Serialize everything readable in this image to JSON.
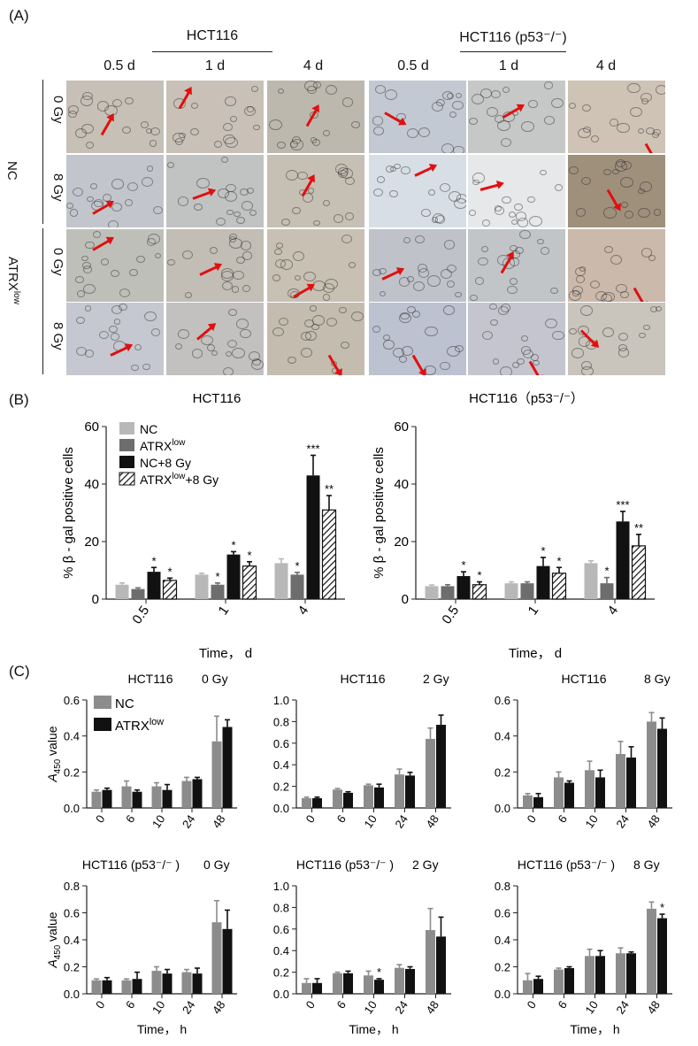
{
  "panel_labels": {
    "a": "(A)",
    "b": "(B)",
    "c": "(C)"
  },
  "panel_a": {
    "groups": [
      {
        "title": "HCT116",
        "times": [
          "0.5 d",
          "1 d",
          "4 d"
        ]
      },
      {
        "title": "HCT116 (p53⁻/⁻)",
        "times": [
          "0.5 d",
          "1 d",
          "4 d"
        ]
      }
    ],
    "row_groups": [
      "NC",
      "ATRX"
    ],
    "row_group_sub": "low",
    "doses": [
      "0 Gy",
      "8 Gy",
      "0 Gy",
      "8 Gy"
    ],
    "arrow_color": "#e01010",
    "tiles": [
      [
        "#c7c0b6",
        "#c9c1b8",
        "#bdb8ad",
        "#c3c9d2",
        "#c6c8c7",
        "#cfc3b6"
      ],
      [
        "#c2c6cc",
        "#c0c3c2",
        "#c6bfb3",
        "#d7dee6",
        "#e6e8ea",
        "#9f907c"
      ],
      [
        "#bfbfba",
        "#c2bdb5",
        "#c8c0b3",
        "#bfc3c9",
        "#c2c5c7",
        "#cbb9ab"
      ],
      [
        "#c5c8d0",
        "#c2c1bf",
        "#c4bcaf",
        "#bcc2cf",
        "#c5c5cf",
        "#c9c4bc"
      ]
    ]
  },
  "chart_data": [
    {
      "id": "B-left",
      "type": "bar",
      "title": "HCT116",
      "xlabel": "Time， d",
      "ylabel": "% β - gal positive cells",
      "ylim": [
        0,
        60
      ],
      "yticks": [
        0,
        20,
        40,
        60
      ],
      "categories": [
        "0.5",
        "1",
        "4"
      ],
      "series": [
        {
          "name": "NC",
          "color": "#b8b8b8",
          "pattern": "solid",
          "values": [
            5,
            8.5,
            12.5
          ],
          "errors": [
            0.6,
            0.5,
            1.5
          ],
          "sig": [
            "",
            "",
            ""
          ]
        },
        {
          "name": "ATRXlow",
          "color": "#6d6d6d",
          "pattern": "solid",
          "values": [
            3.5,
            5,
            8.5
          ],
          "errors": [
            0.4,
            0.6,
            0.8
          ],
          "sig": [
            "",
            "*",
            "*"
          ]
        },
        {
          "name": "NC+8 Gy",
          "color": "#111111",
          "pattern": "solid",
          "values": [
            9.5,
            15.5,
            43
          ],
          "errors": [
            1.5,
            1.0,
            7.0
          ],
          "sig": [
            "*",
            "*",
            "***"
          ]
        },
        {
          "name": "ATRXlow+8 Gy",
          "color": "#111111",
          "pattern": "hatch",
          "values": [
            6.5,
            11.5,
            31
          ],
          "errors": [
            0.8,
            1.5,
            5.0
          ],
          "sig": [
            "*",
            "*",
            "**"
          ]
        }
      ]
    },
    {
      "id": "B-right",
      "type": "bar",
      "title": "HCT116（p53⁻/⁻）",
      "xlabel": "Time， d",
      "ylabel": "% β - gal positive cells",
      "ylim": [
        0,
        60
      ],
      "yticks": [
        0,
        20,
        40,
        60
      ],
      "categories": [
        "0.5",
        "1",
        "4"
      ],
      "series": [
        {
          "name": "NC",
          "color": "#b8b8b8",
          "pattern": "solid",
          "values": [
            4.5,
            5.5,
            12.5
          ],
          "errors": [
            0.4,
            0.5,
            0.8
          ],
          "sig": [
            "",
            "",
            ""
          ]
        },
        {
          "name": "ATRXlow",
          "color": "#6d6d6d",
          "pattern": "solid",
          "values": [
            4.5,
            5.5,
            5.5
          ],
          "errors": [
            0.5,
            0.5,
            2.0
          ],
          "sig": [
            "",
            "",
            "*"
          ]
        },
        {
          "name": "NC+8 Gy",
          "color": "#111111",
          "pattern": "solid",
          "values": [
            8,
            11.5,
            27
          ],
          "errors": [
            1.5,
            3.0,
            3.5
          ],
          "sig": [
            "*",
            "*",
            "***"
          ]
        },
        {
          "name": "ATRXlow+8 Gy",
          "color": "#111111",
          "pattern": "hatch",
          "values": [
            5,
            9,
            18.5
          ],
          "errors": [
            1.0,
            2.0,
            4.0
          ],
          "sig": [
            "*",
            "*",
            "**"
          ]
        }
      ]
    },
    {
      "id": "C-1",
      "type": "bar",
      "title": "HCT116",
      "dose": "0 Gy",
      "xlabel": "",
      "ylabel": "A450 value",
      "ylim": [
        0,
        0.6
      ],
      "yticks": [
        0.0,
        0.2,
        0.4,
        0.6
      ],
      "categories": [
        "0",
        "6",
        "10",
        "24",
        "48"
      ],
      "series": [
        {
          "name": "NC",
          "color": "#8c8c8c",
          "values": [
            0.09,
            0.12,
            0.12,
            0.15,
            0.37
          ],
          "errors": [
            0.01,
            0.03,
            0.02,
            0.02,
            0.14
          ],
          "sig": [
            "",
            "",
            "",
            "",
            ""
          ]
        },
        {
          "name": "ATRXlow",
          "color": "#111111",
          "values": [
            0.1,
            0.09,
            0.1,
            0.16,
            0.45
          ],
          "errors": [
            0.01,
            0.01,
            0.03,
            0.01,
            0.04
          ],
          "sig": [
            "",
            "",
            "",
            "",
            ""
          ]
        }
      ]
    },
    {
      "id": "C-2",
      "type": "bar",
      "title": "HCT116",
      "dose": "2 Gy",
      "xlabel": "",
      "ylabel": "",
      "ylim": [
        0,
        1.0
      ],
      "yticks": [
        0.0,
        0.2,
        0.4,
        0.6,
        0.8,
        1.0
      ],
      "categories": [
        "0",
        "6",
        "10",
        "24",
        "48"
      ],
      "series": [
        {
          "name": "NC",
          "color": "#8c8c8c",
          "values": [
            0.09,
            0.17,
            0.21,
            0.31,
            0.64
          ],
          "errors": [
            0.01,
            0.01,
            0.01,
            0.05,
            0.1
          ],
          "sig": [
            "",
            "",
            "",
            "",
            ""
          ]
        },
        {
          "name": "ATRXlow",
          "color": "#111111",
          "values": [
            0.09,
            0.14,
            0.19,
            0.3,
            0.77
          ],
          "errors": [
            0.01,
            0.01,
            0.03,
            0.03,
            0.09
          ],
          "sig": [
            "",
            "",
            "",
            "",
            ""
          ]
        }
      ]
    },
    {
      "id": "C-3",
      "type": "bar",
      "title": "HCT116",
      "dose": "8 Gy",
      "xlabel": "",
      "ylabel": "",
      "ylim": [
        0,
        0.6
      ],
      "yticks": [
        0.0,
        0.2,
        0.4,
        0.6
      ],
      "categories": [
        "0",
        "6",
        "10",
        "24",
        "48"
      ],
      "series": [
        {
          "name": "NC",
          "color": "#8c8c8c",
          "values": [
            0.07,
            0.17,
            0.21,
            0.3,
            0.48
          ],
          "errors": [
            0.01,
            0.03,
            0.05,
            0.07,
            0.05
          ],
          "sig": [
            "",
            "",
            "",
            "",
            ""
          ]
        },
        {
          "name": "ATRXlow",
          "color": "#111111",
          "values": [
            0.06,
            0.14,
            0.17,
            0.28,
            0.44
          ],
          "errors": [
            0.02,
            0.01,
            0.04,
            0.06,
            0.06
          ],
          "sig": [
            "",
            "",
            "",
            "",
            ""
          ]
        }
      ]
    },
    {
      "id": "C-4",
      "type": "bar",
      "title": "HCT116 (p53⁻/⁻ )",
      "dose": "0 Gy",
      "xlabel": "Time， h",
      "ylabel": "A450 value",
      "ylim": [
        0,
        0.8
      ],
      "yticks": [
        0.0,
        0.2,
        0.4,
        0.6,
        0.8
      ],
      "categories": [
        "0",
        "6",
        "10",
        "24",
        "48"
      ],
      "series": [
        {
          "name": "NC",
          "color": "#8c8c8c",
          "values": [
            0.1,
            0.1,
            0.17,
            0.16,
            0.53
          ],
          "errors": [
            0.01,
            0.01,
            0.03,
            0.02,
            0.16
          ],
          "sig": [
            "",
            "",
            "",
            "",
            ""
          ]
        },
        {
          "name": "ATRXlow",
          "color": "#111111",
          "values": [
            0.1,
            0.11,
            0.15,
            0.15,
            0.48
          ],
          "errors": [
            0.02,
            0.05,
            0.03,
            0.04,
            0.14
          ],
          "sig": [
            "",
            "",
            "",
            "",
            ""
          ]
        }
      ]
    },
    {
      "id": "C-5",
      "type": "bar",
      "title": "HCT116 (p53⁻/⁻ )",
      "dose": "2 Gy",
      "xlabel": "Time， h",
      "ylabel": "",
      "ylim": [
        0,
        1.0
      ],
      "yticks": [
        0.0,
        0.2,
        0.4,
        0.6,
        0.8,
        1.0
      ],
      "categories": [
        "0",
        "6",
        "10",
        "24",
        "48"
      ],
      "series": [
        {
          "name": "NC",
          "color": "#8c8c8c",
          "values": [
            0.1,
            0.19,
            0.17,
            0.24,
            0.59
          ],
          "errors": [
            0.04,
            0.01,
            0.04,
            0.03,
            0.2
          ],
          "sig": [
            "",
            "",
            "",
            "",
            ""
          ]
        },
        {
          "name": "ATRXlow",
          "color": "#111111",
          "values": [
            0.1,
            0.19,
            0.13,
            0.23,
            0.53
          ],
          "errors": [
            0.04,
            0.02,
            0.01,
            0.02,
            0.18
          ],
          "sig": [
            "",
            "",
            "*",
            "",
            ""
          ]
        }
      ]
    },
    {
      "id": "C-6",
      "type": "bar",
      "title": "HCT116 (p53⁻/⁻ )",
      "dose": "8 Gy",
      "xlabel": "Time， h",
      "ylabel": "",
      "ylim": [
        0,
        0.8
      ],
      "yticks": [
        0.0,
        0.2,
        0.4,
        0.6,
        0.8
      ],
      "categories": [
        "0",
        "6",
        "10",
        "24",
        "48"
      ],
      "series": [
        {
          "name": "NC",
          "color": "#8c8c8c",
          "values": [
            0.1,
            0.18,
            0.28,
            0.3,
            0.63
          ],
          "errors": [
            0.05,
            0.01,
            0.05,
            0.04,
            0.05
          ],
          "sig": [
            "",
            "",
            "",
            "",
            ""
          ]
        },
        {
          "name": "ATRXlow",
          "color": "#111111",
          "values": [
            0.11,
            0.19,
            0.28,
            0.3,
            0.56
          ],
          "errors": [
            0.02,
            0.01,
            0.04,
            0.01,
            0.03
          ],
          "sig": [
            "",
            "",
            "",
            "",
            "*"
          ]
        }
      ]
    }
  ],
  "legend_c": [
    {
      "name": "NC",
      "color": "#8c8c8c"
    },
    {
      "name": "ATRXlow",
      "color": "#111111"
    }
  ]
}
